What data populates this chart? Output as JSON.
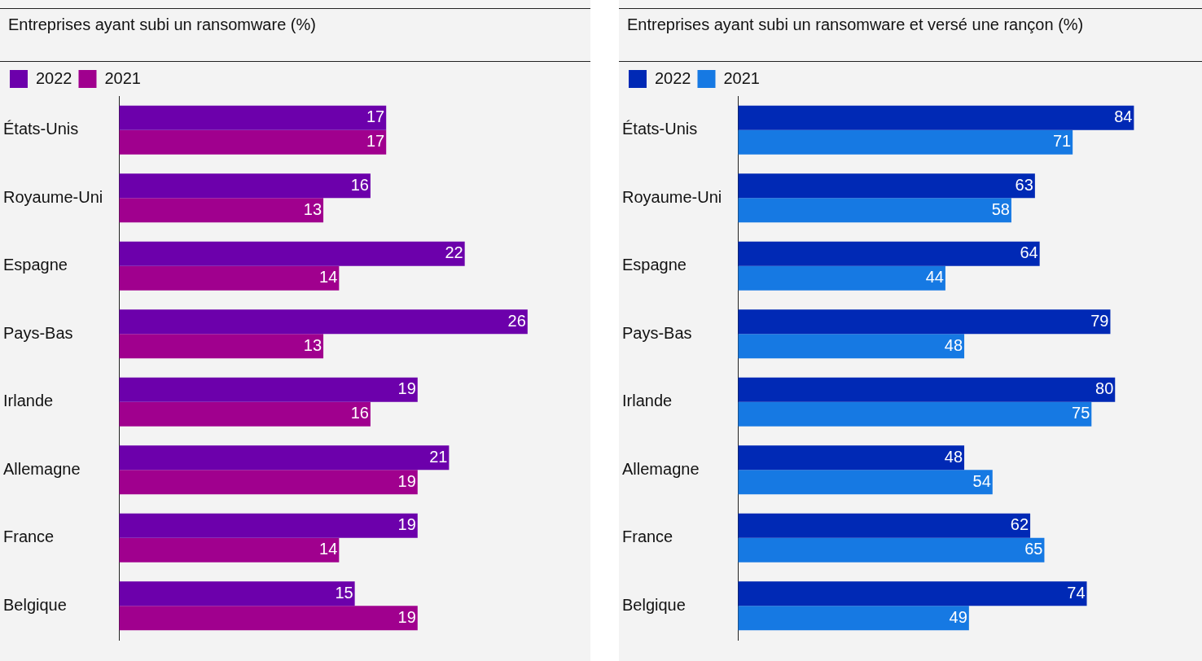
{
  "chart_data": [
    {
      "type": "bar",
      "orientation": "horizontal",
      "title": "Entreprises ayant subi un ransomware (%)",
      "categories": [
        "États-Unis",
        "Royaume-Uni",
        "Espagne",
        "Pays-Bas",
        "Irlande",
        "Allemagne",
        "France",
        "Belgique"
      ],
      "series": [
        {
          "name": "2022",
          "color": "#6c00ab",
          "values": [
            17,
            16,
            22,
            26,
            19,
            21,
            19,
            15
          ]
        },
        {
          "name": "2021",
          "color": "#a0008e",
          "values": [
            17,
            13,
            14,
            13,
            16,
            19,
            14,
            19
          ]
        }
      ],
      "xlim": [
        0,
        30
      ],
      "tick_labels": "y",
      "data_labels": true,
      "legend": "top left",
      "grid": false
    },
    {
      "type": "bar",
      "orientation": "horizontal",
      "title": "Entreprises ayant subi un ransomware et versé une rançon (%)",
      "categories": [
        "États-Unis",
        "Royaume-Uni",
        "Espagne",
        "Pays-Bas",
        "Irlande",
        "Allemagne",
        "France",
        "Belgique"
      ],
      "series": [
        {
          "name": "2022",
          "color": "#0029b5",
          "values": [
            84,
            63,
            64,
            79,
            80,
            48,
            62,
            74
          ]
        },
        {
          "name": "2021",
          "color": "#1679e3",
          "values": [
            71,
            58,
            44,
            48,
            75,
            54,
            65,
            49
          ]
        }
      ],
      "xlim": [
        0,
        100
      ],
      "tick_labels": "y",
      "data_labels": true,
      "legend": "top left",
      "grid": false
    }
  ]
}
